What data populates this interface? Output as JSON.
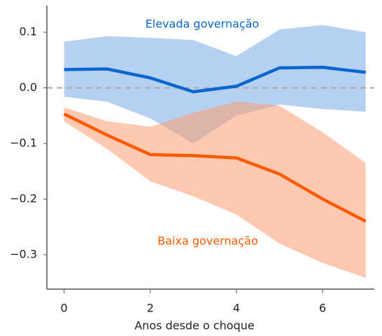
{
  "chart_data": {
    "type": "line",
    "xlabel": "Anos desde o choque",
    "x": [
      0,
      1,
      2,
      3,
      4,
      5,
      6,
      7
    ],
    "series": [
      {
        "name": "Elevada governação",
        "color": "#0a66cc",
        "band_color": "#7aa9e6",
        "values": [
          0.033,
          0.034,
          0.018,
          -0.007,
          0.003,
          0.036,
          0.037,
          0.028
        ],
        "upper": [
          0.083,
          0.093,
          0.09,
          0.086,
          0.057,
          0.105,
          0.113,
          0.1
        ],
        "lower": [
          -0.016,
          -0.025,
          -0.055,
          -0.1,
          -0.05,
          -0.03,
          -0.038,
          -0.043
        ]
      },
      {
        "name": "Baixa governação",
        "color": "#ff5a00",
        "band_color": "#fc9d70",
        "values": [
          -0.047,
          -0.085,
          -0.12,
          -0.122,
          -0.126,
          -0.155,
          -0.2,
          -0.24
        ],
        "upper": [
          -0.035,
          -0.06,
          -0.07,
          -0.045,
          -0.025,
          -0.032,
          -0.08,
          -0.135
        ],
        "lower": [
          -0.06,
          -0.11,
          -0.168,
          -0.195,
          -0.228,
          -0.28,
          -0.315,
          -0.342
        ]
      }
    ],
    "xlim": [
      -0.4,
      7.2
    ],
    "ylim": [
      -0.362,
      0.148
    ],
    "xticks": [
      0,
      2,
      4,
      6
    ],
    "yticks": [
      0.1,
      {
        "value": 0,
        "label": "0.0"
      },
      {
        "value": -0.1,
        "label": "−0.1"
      },
      {
        "value": -0.2,
        "label": "−0.2"
      },
      {
        "value": -0.3,
        "label": "−0.3"
      }
    ]
  }
}
